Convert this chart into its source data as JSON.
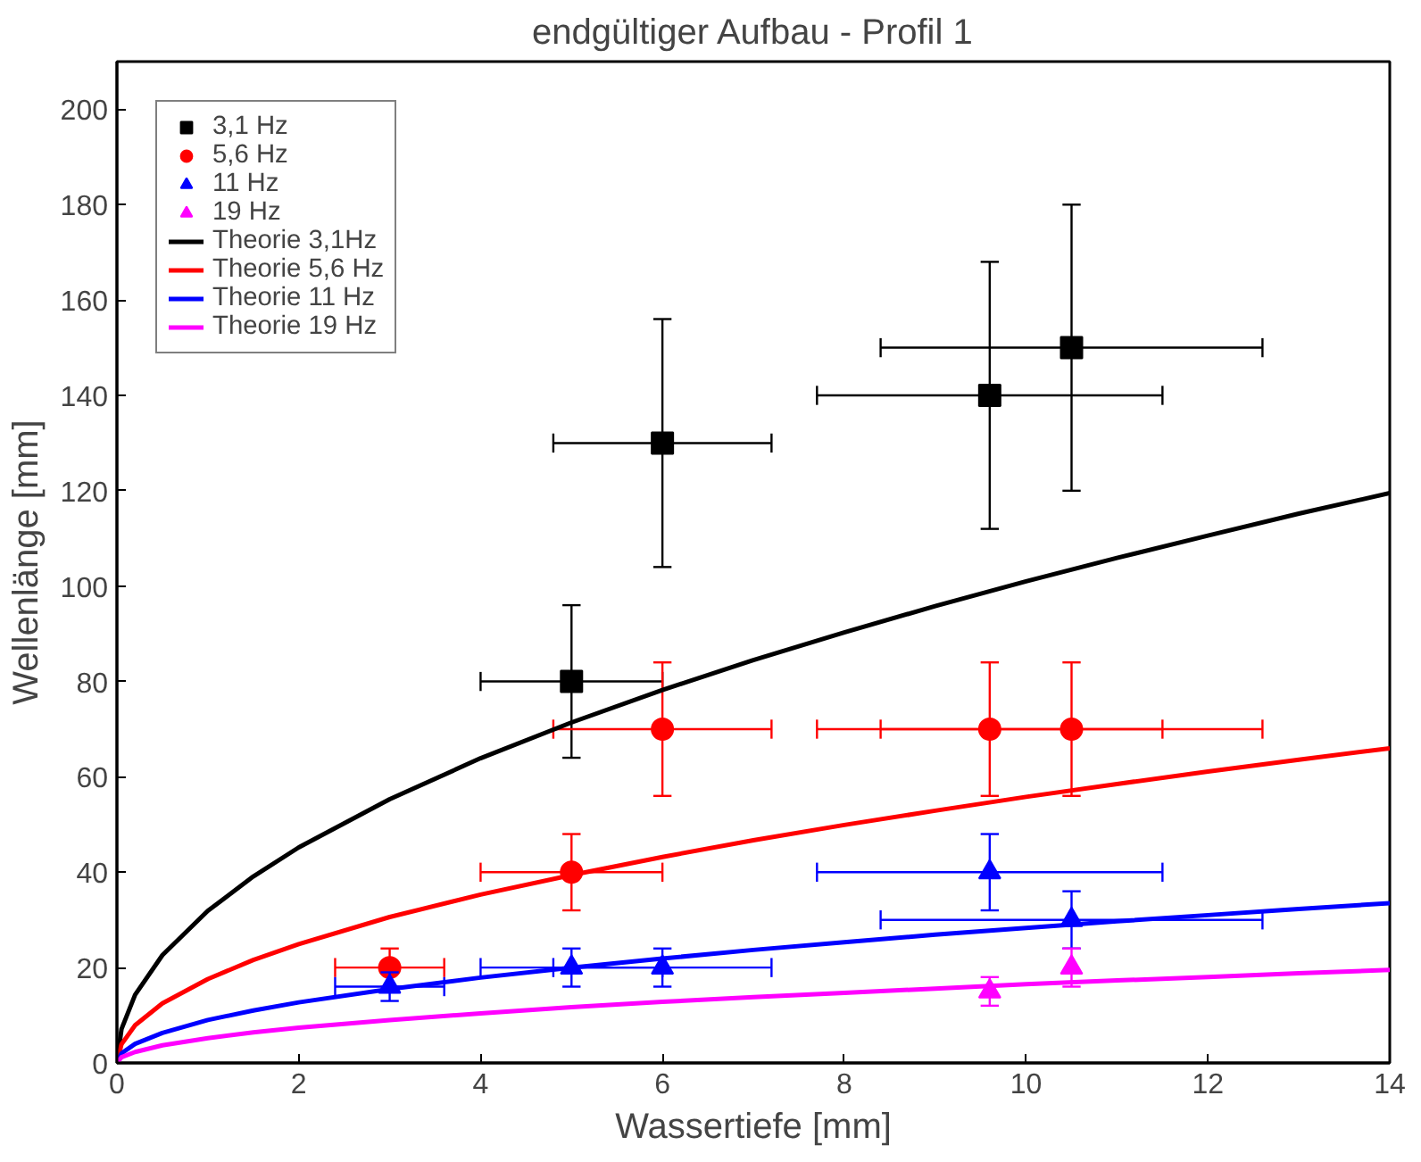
{
  "chart_data": {
    "type": "scatter",
    "title": "endgültiger Aufbau - Profil 1",
    "xlabel": "Wassertiefe [mm]",
    "ylabel": "Wellenlänge [mm]",
    "xlim": [
      0,
      14
    ],
    "ylim": [
      0,
      210
    ],
    "xticks": [
      0,
      2,
      4,
      6,
      8,
      10,
      12,
      14
    ],
    "yticks": [
      0,
      20,
      40,
      60,
      80,
      100,
      120,
      140,
      160,
      180,
      200
    ],
    "grid": false,
    "legend": "top left",
    "series": [
      {
        "name": "3,1 Hz",
        "marker": "square",
        "color": "#000000",
        "x": [
          5,
          6,
          9.6,
          10.5
        ],
        "values": [
          80,
          130,
          140,
          150
        ],
        "errors": [
          16,
          26,
          28,
          30
        ],
        "xerrors": [
          1,
          1.2,
          1.9,
          2.1
        ]
      },
      {
        "name": "5,6 Hz",
        "marker": "circle",
        "color": "#ff0000",
        "x": [
          3,
          5,
          6,
          9.6,
          10.5
        ],
        "values": [
          20,
          40,
          70,
          70,
          70
        ],
        "errors": [
          4,
          8,
          14,
          14,
          14
        ],
        "xerrors": [
          0.6,
          1,
          1.2,
          1.9,
          2.1
        ]
      },
      {
        "name": "11 Hz",
        "marker": "triangle",
        "color": "#0000ff",
        "x": [
          3,
          5,
          6,
          9.6,
          10.5
        ],
        "values": [
          16,
          20,
          20,
          40,
          30
        ],
        "errors": [
          3,
          4,
          4,
          8,
          6
        ],
        "xerrors": [
          0.6,
          1,
          1.2,
          1.9,
          2.1
        ]
      },
      {
        "name": "19 Hz",
        "marker": "triangle",
        "color": "#ff00ff",
        "x": [
          9.6,
          10.5
        ],
        "values": [
          15,
          20
        ],
        "errors": [
          3,
          4
        ]
      },
      {
        "name": "Theorie 3,1Hz",
        "type": "line",
        "color": "#000000",
        "x": [
          0,
          0.05,
          0.2,
          0.5,
          1,
          1.5,
          2,
          3,
          4,
          5,
          6,
          7,
          8,
          9,
          10,
          11,
          12,
          13,
          14
        ],
        "values": [
          0,
          7.1,
          14.3,
          22.6,
          31.9,
          39.1,
          45.2,
          55.3,
          63.9,
          71.4,
          78.2,
          84.5,
          90.3,
          95.8,
          101,
          105.9,
          110.6,
          115.2,
          119.5
        ]
      },
      {
        "name": "Theorie 5,6 Hz",
        "type": "line",
        "color": "#ff0000",
        "x": [
          0,
          0.05,
          0.2,
          0.5,
          1,
          1.5,
          2,
          3,
          4,
          5,
          6,
          7,
          8,
          9,
          10,
          11,
          12,
          13,
          14
        ],
        "values": [
          0,
          3.9,
          7.9,
          12.5,
          17.6,
          21.6,
          24.9,
          30.6,
          35.3,
          39.4,
          43.2,
          46.7,
          49.9,
          52.9,
          55.8,
          58.5,
          61.1,
          63.6,
          66
        ]
      },
      {
        "name": "Theorie 11 Hz",
        "type": "line",
        "color": "#0000ff",
        "x": [
          0,
          0.05,
          0.2,
          0.5,
          1,
          1.5,
          2,
          3,
          4,
          5,
          6,
          7,
          8,
          9,
          10,
          11,
          12,
          13,
          14
        ],
        "values": [
          0,
          2.0,
          4.0,
          6.3,
          9.0,
          11.0,
          12.7,
          15.5,
          17.9,
          20.0,
          21.9,
          23.7,
          25.3,
          26.9,
          28.3,
          29.7,
          31.0,
          32.3,
          33.5
        ]
      },
      {
        "name": "Theorie 19 Hz",
        "type": "line",
        "color": "#ff00ff",
        "x": [
          0,
          0.05,
          0.2,
          0.5,
          1,
          1.5,
          2,
          3,
          4,
          5,
          6,
          7,
          8,
          9,
          10,
          11,
          12,
          13,
          14
        ],
        "values": [
          0,
          1.2,
          2.3,
          3.7,
          5.2,
          6.4,
          7.4,
          9.0,
          10.4,
          11.7,
          12.8,
          13.8,
          14.7,
          15.6,
          16.5,
          17.3,
          18.0,
          18.8,
          19.5
        ]
      }
    ]
  }
}
